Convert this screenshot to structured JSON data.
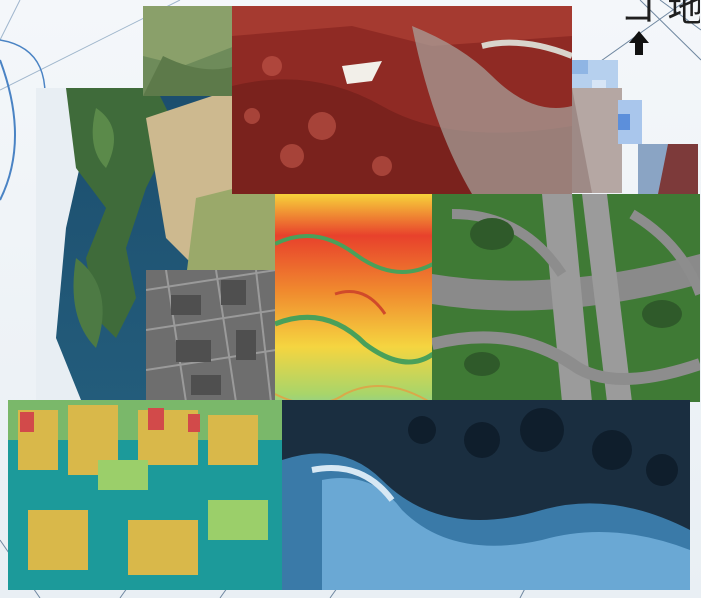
{
  "header": {
    "corner_text": "コ 地"
  },
  "icons": {
    "arrow": "up-arrow-icon"
  },
  "colors": {
    "background": "#eef3f7",
    "accent_blue": "#4a83c4"
  }
}
